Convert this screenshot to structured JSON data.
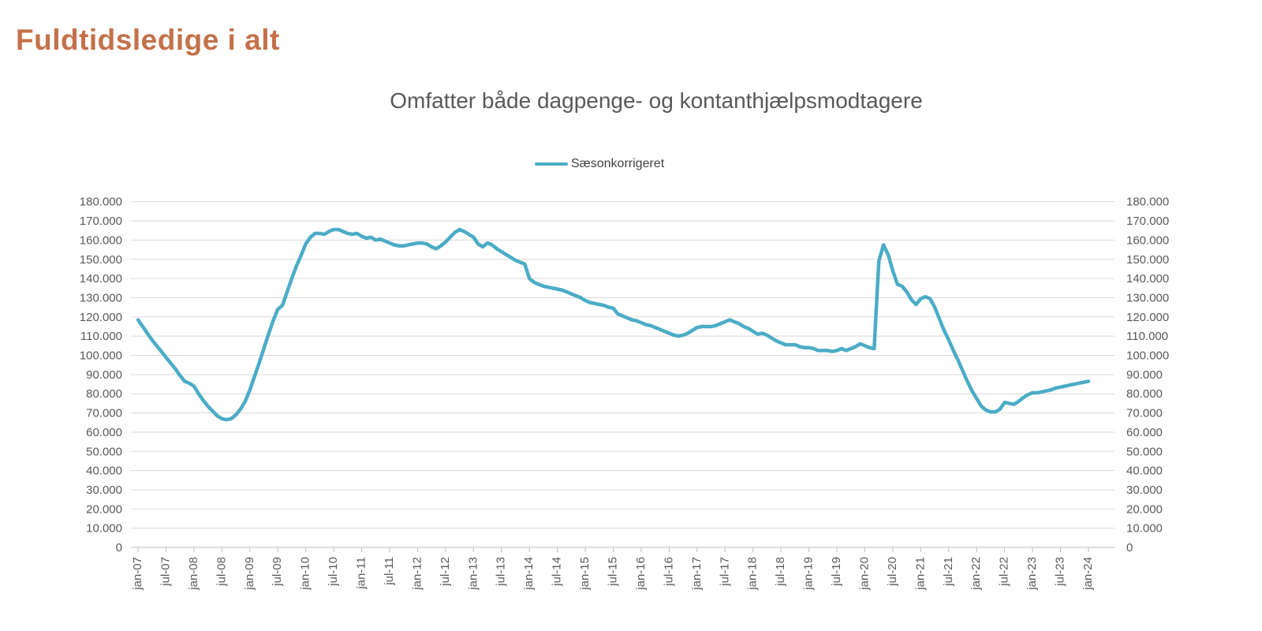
{
  "page_title": "Fuldtidsledige i alt",
  "colors": {
    "title": "#C4714A",
    "subtitle": "#595959",
    "axis_labels": "#595959",
    "gridline": "#D9D9D9",
    "axis_line": "#BFBFBF",
    "series_line": "#4BACC6",
    "background": "#FFFFFF"
  },
  "legend": {
    "label": "Sæsonkorrigeret",
    "marker_color": "#4BACC6"
  },
  "chart_data": {
    "type": "line",
    "title": "Omfatter både dagpenge- og kontanthjælpsmodtagere",
    "xlabel": "",
    "ylabel": "",
    "ylim": [
      0,
      180000
    ],
    "y_tick_step": 10000,
    "y_tick_labels": [
      "0",
      "10.000",
      "20.000",
      "30.000",
      "40.000",
      "50.000",
      "60.000",
      "70.000",
      "80.000",
      "90.000",
      "100.000",
      "110.000",
      "120.000",
      "130.000",
      "140.000",
      "150.000",
      "160.000",
      "170.000",
      "180.000"
    ],
    "y_axis_sides": "both",
    "grid": "horizontal",
    "legend_position": "top-center",
    "x_frequency": "monthly",
    "x_start": "jan-07",
    "x_end": "jan-24",
    "x_tick_every_months": 6,
    "x_tick_labels": [
      "jan-07",
      "jul-07",
      "jan-08",
      "jul-08",
      "jan-09",
      "jul-09",
      "jan-10",
      "jul-10",
      "jan-11",
      "jul-11",
      "jan-12",
      "jul-12",
      "jan-13",
      "jul-13",
      "jan-14",
      "jul-14",
      "jan-15",
      "jul-15",
      "jan-16",
      "jul-16",
      "jan-17",
      "jul-17",
      "jan-18",
      "jul-18",
      "jan-19",
      "jul-19",
      "jan-20",
      "jul-20",
      "jan-21",
      "jul-21",
      "jan-22",
      "jul-22",
      "jan-23",
      "jul-23",
      "jan-24"
    ],
    "series": [
      {
        "name": "Sæsonkorrigeret",
        "color": "#4BACC6",
        "values": [
          118500,
          115000,
          111500,
          108000,
          105000,
          102000,
          99000,
          96000,
          93000,
          89500,
          86500,
          85500,
          84000,
          80000,
          76500,
          73500,
          71000,
          68500,
          67000,
          66500,
          67000,
          69000,
          72000,
          76000,
          82000,
          89000,
          96000,
          103500,
          111000,
          118000,
          124000,
          126000,
          133000,
          140000,
          146500,
          152000,
          158000,
          161500,
          163500,
          163500,
          163000,
          164500,
          165500,
          165500,
          164500,
          163500,
          163000,
          163500,
          162000,
          161000,
          161500,
          160000,
          160500,
          159500,
          158500,
          157500,
          157000,
          157000,
          157500,
          158000,
          158500,
          158500,
          158000,
          156500,
          155500,
          157000,
          159000,
          161500,
          164000,
          165500,
          164500,
          163000,
          161500,
          158000,
          156500,
          158500,
          157500,
          155500,
          154000,
          152500,
          151000,
          149500,
          148500,
          147500,
          140000,
          138000,
          137000,
          136000,
          135500,
          135000,
          134500,
          134000,
          133000,
          132000,
          131000,
          130000,
          128500,
          127500,
          127000,
          126500,
          126000,
          125000,
          124500,
          121500,
          120500,
          119500,
          118500,
          118000,
          117000,
          116000,
          115500,
          114500,
          113500,
          112500,
          111500,
          110500,
          110000,
          110500,
          111500,
          113000,
          114500,
          115000,
          115000,
          115000,
          115500,
          116500,
          117500,
          118500,
          117500,
          116500,
          115000,
          114000,
          112500,
          111000,
          111500,
          110500,
          109000,
          107500,
          106500,
          105500,
          105500,
          105500,
          104500,
          104000,
          104000,
          103500,
          102500,
          102500,
          102500,
          102000,
          102500,
          103500,
          102500,
          103500,
          104500,
          106000,
          105000,
          104000,
          103500,
          149000,
          157500,
          152500,
          144000,
          137000,
          136000,
          133000,
          129000,
          126500,
          129500,
          130500,
          129500,
          125000,
          119000,
          113000,
          108000,
          102500,
          97500,
          92000,
          86500,
          81500,
          77500,
          73500,
          71500,
          70500,
          70500,
          72000,
          75500,
          75000,
          74500,
          76000,
          78000,
          79500,
          80500,
          80500,
          81000,
          81500,
          82000,
          83000,
          83500,
          84000,
          84500,
          85000,
          85500,
          86000,
          86500
        ]
      }
    ]
  }
}
